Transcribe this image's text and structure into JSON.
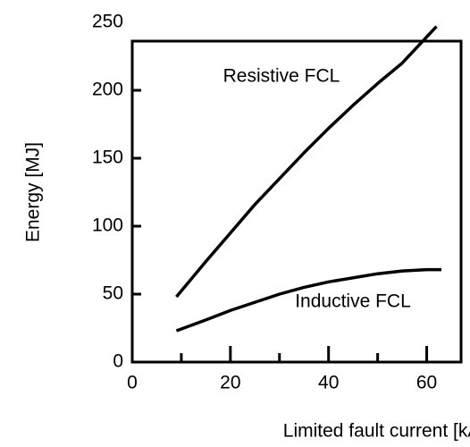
{
  "chart_data": {
    "type": "line",
    "xlabel": "Limited fault current [kA]",
    "ylabel": "Energy [MJ]",
    "xlim": [
      0,
      67
    ],
    "xticks": [
      0,
      20,
      40,
      60
    ],
    "xminorticks": [
      10,
      30,
      50
    ],
    "ylim": [
      0,
      250
    ],
    "yticks": [
      0,
      50,
      100,
      150,
      200,
      250
    ],
    "series": [
      {
        "name": "Resistive FCL",
        "color": "#000000",
        "x": [
          9,
          15,
          20,
          25,
          30,
          35,
          40,
          45,
          50,
          55,
          62
        ],
        "values": [
          48,
          74,
          95,
          116,
          135,
          154,
          172,
          189,
          205,
          220,
          247
        ]
      },
      {
        "name": "Inductive FCL",
        "color": "#000000",
        "x": [
          9,
          15,
          20,
          25,
          30,
          35,
          40,
          45,
          50,
          55,
          60,
          63
        ],
        "values": [
          23,
          31,
          38,
          44,
          50,
          55,
          59,
          62,
          65,
          67,
          68,
          68
        ]
      }
    ]
  }
}
